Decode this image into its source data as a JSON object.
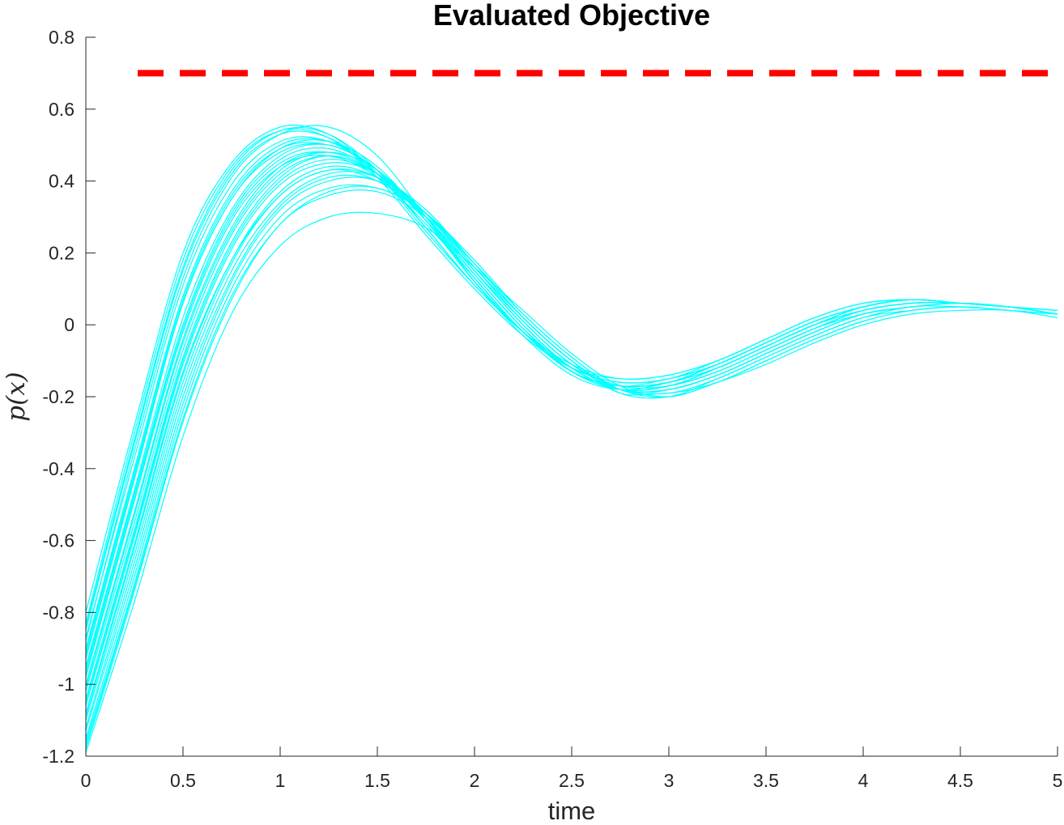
{
  "chart_data": {
    "type": "line",
    "title": "Evaluated Objective",
    "xlabel": "time",
    "ylabel": "p(x)",
    "xlim": [
      0,
      5
    ],
    "ylim": [
      -1.2,
      0.8
    ],
    "xticks": [
      0,
      0.5,
      1,
      1.5,
      2,
      2.5,
      3,
      3.5,
      4,
      4.5,
      5
    ],
    "yticks": [
      -1.2,
      -1,
      -0.8,
      -0.6,
      -0.4,
      -0.2,
      0,
      0.2,
      0.4,
      0.6,
      0.8
    ],
    "xtick_labels": [
      "0",
      "0.5",
      "1",
      "1.5",
      "2",
      "2.5",
      "3",
      "3.5",
      "4",
      "4.5",
      "5"
    ],
    "ytick_labels": [
      "-1.2",
      "-1",
      "-0.8",
      "-0.6",
      "-0.4",
      "-0.2",
      "0",
      "0.2",
      "0.4",
      "0.6",
      "0.8"
    ],
    "grid": false,
    "legend": "none",
    "x": [
      0,
      0.25,
      0.5,
      0.75,
      1,
      1.25,
      1.5,
      1.75,
      2,
      2.25,
      2.5,
      2.75,
      3,
      3.25,
      3.5,
      3.75,
      4,
      4.25,
      4.5,
      4.75,
      5
    ],
    "threshold": {
      "y": 0.7,
      "style": "dashed",
      "color": "#ff0000"
    },
    "series_color": "#00ffff",
    "series": [
      {
        "values": [
          -0.8,
          -0.28,
          0.2,
          0.45,
          0.55,
          0.53,
          0.42,
          0.26,
          0.11,
          -0.02,
          -0.11,
          -0.15,
          -0.14,
          -0.1,
          -0.04,
          0.02,
          0.06,
          0.07,
          0.06,
          0.05,
          0.04
        ]
      },
      {
        "values": [
          -0.85,
          -0.33,
          0.15,
          0.42,
          0.53,
          0.52,
          0.42,
          0.27,
          0.11,
          -0.02,
          -0.12,
          -0.16,
          -0.15,
          -0.11,
          -0.05,
          0.01,
          0.05,
          0.07,
          0.06,
          0.05,
          0.03
        ]
      },
      {
        "values": [
          -0.9,
          -0.4,
          0.08,
          0.37,
          0.5,
          0.51,
          0.43,
          0.29,
          0.12,
          -0.02,
          -0.13,
          -0.17,
          -0.16,
          -0.11,
          -0.05,
          0.01,
          0.05,
          0.07,
          0.06,
          0.05,
          0.03
        ]
      },
      {
        "values": [
          -0.95,
          -0.46,
          0.02,
          0.32,
          0.47,
          0.5,
          0.43,
          0.3,
          0.13,
          -0.02,
          -0.13,
          -0.18,
          -0.16,
          -0.12,
          -0.06,
          0.0,
          0.05,
          0.07,
          0.06,
          0.05,
          0.03
        ]
      },
      {
        "values": [
          -1.0,
          -0.52,
          -0.04,
          0.27,
          0.44,
          0.48,
          0.43,
          0.3,
          0.14,
          -0.01,
          -0.13,
          -0.18,
          -0.17,
          -0.12,
          -0.06,
          0.0,
          0.04,
          0.06,
          0.06,
          0.05,
          0.03
        ]
      },
      {
        "values": [
          -1.05,
          -0.58,
          -0.1,
          0.22,
          0.4,
          0.46,
          0.42,
          0.31,
          0.15,
          0.0,
          -0.12,
          -0.18,
          -0.17,
          -0.13,
          -0.07,
          -0.01,
          0.04,
          0.06,
          0.06,
          0.05,
          0.03
        ]
      },
      {
        "values": [
          -1.1,
          -0.64,
          -0.16,
          0.17,
          0.36,
          0.43,
          0.41,
          0.31,
          0.16,
          0.01,
          -0.11,
          -0.18,
          -0.18,
          -0.14,
          -0.08,
          -0.02,
          0.03,
          0.05,
          0.06,
          0.05,
          0.03
        ]
      },
      {
        "values": [
          -1.15,
          -0.7,
          -0.22,
          0.12,
          0.32,
          0.4,
          0.4,
          0.31,
          0.17,
          0.02,
          -0.1,
          -0.18,
          -0.19,
          -0.15,
          -0.09,
          -0.03,
          0.02,
          0.05,
          0.05,
          0.04,
          0.03
        ]
      },
      {
        "values": [
          -1.18,
          -0.74,
          -0.27,
          0.07,
          0.28,
          0.36,
          0.37,
          0.3,
          0.17,
          0.03,
          -0.09,
          -0.18,
          -0.19,
          -0.16,
          -0.1,
          -0.04,
          0.01,
          0.04,
          0.05,
          0.04,
          0.03
        ]
      },
      {
        "values": [
          -1.19,
          -0.77,
          -0.31,
          0.03,
          0.22,
          0.3,
          0.31,
          0.27,
          0.16,
          0.04,
          -0.08,
          -0.17,
          -0.2,
          -0.16,
          -0.11,
          -0.05,
          0.0,
          0.03,
          0.04,
          0.04,
          0.02
        ]
      },
      {
        "values": [
          -0.88,
          -0.35,
          0.13,
          0.41,
          0.53,
          0.55,
          0.47,
          0.3,
          0.12,
          -0.03,
          -0.14,
          -0.18,
          -0.16,
          -0.11,
          -0.05,
          0.01,
          0.05,
          0.07,
          0.06,
          0.05,
          0.04
        ]
      },
      {
        "values": [
          -0.98,
          -0.49,
          -0.02,
          0.29,
          0.44,
          0.47,
          0.41,
          0.28,
          0.13,
          -0.02,
          -0.13,
          -0.17,
          -0.16,
          -0.12,
          -0.06,
          0.0,
          0.04,
          0.06,
          0.06,
          0.05,
          0.03
        ]
      },
      {
        "values": [
          -1.08,
          -0.61,
          -0.13,
          0.18,
          0.36,
          0.43,
          0.4,
          0.3,
          0.15,
          0.01,
          -0.11,
          -0.17,
          -0.17,
          -0.13,
          -0.07,
          -0.01,
          0.03,
          0.05,
          0.06,
          0.05,
          0.03
        ]
      },
      {
        "values": [
          -0.93,
          -0.43,
          0.06,
          0.35,
          0.48,
          0.5,
          0.43,
          0.29,
          0.13,
          -0.02,
          -0.13,
          -0.17,
          -0.15,
          -0.11,
          -0.05,
          0.01,
          0.05,
          0.07,
          0.06,
          0.05,
          0.03
        ]
      },
      {
        "values": [
          -1.12,
          -0.66,
          -0.18,
          0.15,
          0.34,
          0.42,
          0.41,
          0.32,
          0.17,
          0.02,
          -0.1,
          -0.19,
          -0.18,
          -0.14,
          -0.08,
          -0.02,
          0.03,
          0.05,
          0.06,
          0.05,
          0.03
        ]
      },
      {
        "values": [
          -0.83,
          -0.3,
          0.18,
          0.44,
          0.54,
          0.52,
          0.41,
          0.25,
          0.1,
          -0.03,
          -0.12,
          -0.15,
          -0.14,
          -0.1,
          -0.04,
          0.02,
          0.06,
          0.07,
          0.06,
          0.05,
          0.04
        ]
      },
      {
        "values": [
          -1.02,
          -0.55,
          -0.07,
          0.25,
          0.42,
          0.47,
          0.42,
          0.3,
          0.14,
          -0.01,
          -0.12,
          -0.18,
          -0.17,
          -0.12,
          -0.06,
          0.0,
          0.04,
          0.06,
          0.06,
          0.05,
          0.03
        ]
      },
      {
        "values": [
          -1.16,
          -0.72,
          -0.24,
          0.1,
          0.3,
          0.38,
          0.38,
          0.31,
          0.17,
          0.02,
          -0.1,
          -0.19,
          -0.2,
          -0.15,
          -0.09,
          -0.03,
          0.02,
          0.04,
          0.05,
          0.04,
          0.03
        ]
      },
      {
        "values": [
          -0.96,
          -0.47,
          0.0,
          0.31,
          0.46,
          0.49,
          0.42,
          0.29,
          0.13,
          -0.02,
          -0.13,
          -0.17,
          -0.16,
          -0.12,
          -0.06,
          0.0,
          0.05,
          0.07,
          0.06,
          0.05,
          0.03
        ]
      },
      {
        "values": [
          -1.06,
          -0.59,
          -0.11,
          0.21,
          0.39,
          0.45,
          0.42,
          0.31,
          0.15,
          0.0,
          -0.12,
          -0.18,
          -0.17,
          -0.13,
          -0.07,
          -0.01,
          0.04,
          0.06,
          0.06,
          0.05,
          0.03
        ]
      },
      {
        "values": [
          -0.87,
          -0.37,
          0.11,
          0.39,
          0.51,
          0.51,
          0.42,
          0.27,
          0.11,
          -0.02,
          -0.12,
          -0.16,
          -0.15,
          -0.11,
          -0.05,
          0.01,
          0.05,
          0.07,
          0.06,
          0.05,
          0.04
        ]
      },
      {
        "values": [
          -1.13,
          -0.68,
          -0.2,
          0.13,
          0.33,
          0.41,
          0.4,
          0.31,
          0.16,
          0.02,
          -0.1,
          -0.18,
          -0.18,
          -0.14,
          -0.08,
          -0.02,
          0.03,
          0.05,
          0.06,
          0.05,
          0.03
        ]
      },
      {
        "values": [
          -0.91,
          -0.41,
          0.07,
          0.36,
          0.49,
          0.5,
          0.43,
          0.29,
          0.12,
          -0.02,
          -0.13,
          -0.17,
          -0.16,
          -0.11,
          -0.05,
          0.01,
          0.05,
          0.07,
          0.06,
          0.05,
          0.03
        ]
      },
      {
        "values": [
          -1.01,
          -0.53,
          -0.05,
          0.26,
          0.43,
          0.48,
          0.43,
          0.3,
          0.14,
          -0.01,
          -0.13,
          -0.18,
          -0.17,
          -0.12,
          -0.06,
          0.0,
          0.04,
          0.06,
          0.06,
          0.05,
          0.03
        ]
      },
      {
        "values": [
          -1.17,
          -0.73,
          -0.26,
          0.08,
          0.28,
          0.37,
          0.38,
          0.31,
          0.18,
          0.03,
          -0.09,
          -0.18,
          -0.2,
          -0.16,
          -0.1,
          -0.04,
          0.01,
          0.04,
          0.05,
          0.04,
          0.03
        ]
      },
      {
        "values": [
          -0.84,
          -0.32,
          0.16,
          0.43,
          0.54,
          0.53,
          0.43,
          0.27,
          0.11,
          -0.02,
          -0.12,
          -0.16,
          -0.15,
          -0.1,
          -0.04,
          0.02,
          0.06,
          0.07,
          0.06,
          0.05,
          0.04
        ]
      },
      {
        "values": [
          -0.97,
          -0.48,
          -0.01,
          0.3,
          0.45,
          0.48,
          0.42,
          0.29,
          0.13,
          -0.02,
          -0.13,
          -0.17,
          -0.16,
          -0.12,
          -0.06,
          0.0,
          0.05,
          0.07,
          0.06,
          0.05,
          0.03
        ]
      },
      {
        "values": [
          -1.09,
          -0.62,
          -0.14,
          0.18,
          0.37,
          0.44,
          0.41,
          0.31,
          0.16,
          0.01,
          -0.11,
          -0.18,
          -0.18,
          -0.14,
          -0.08,
          -0.02,
          0.03,
          0.05,
          0.06,
          0.05,
          0.03
        ]
      },
      {
        "values": [
          -0.92,
          -0.42,
          0.06,
          0.35,
          0.49,
          0.51,
          0.44,
          0.29,
          0.12,
          -0.02,
          -0.13,
          -0.17,
          -0.16,
          -0.11,
          -0.05,
          0.01,
          0.05,
          0.07,
          0.06,
          0.05,
          0.03
        ]
      },
      {
        "values": [
          -1.04,
          -0.57,
          -0.09,
          0.23,
          0.41,
          0.47,
          0.42,
          0.31,
          0.15,
          0.0,
          -0.12,
          -0.18,
          -0.17,
          -0.13,
          -0.07,
          -0.01,
          0.04,
          0.06,
          0.06,
          0.05,
          0.03
        ]
      }
    ]
  }
}
